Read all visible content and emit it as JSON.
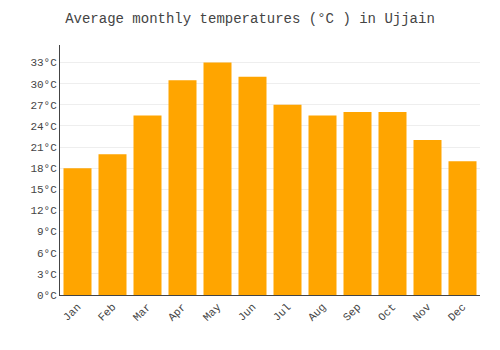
{
  "chart_data": {
    "type": "bar",
    "title": "Average monthly temperatures (°C ) in Ujjain",
    "categories": [
      "Jan",
      "Feb",
      "Mar",
      "Apr",
      "May",
      "Jun",
      "Jul",
      "Aug",
      "Sep",
      "Oct",
      "Nov",
      "Dec"
    ],
    "values": [
      18,
      20,
      25.5,
      30.5,
      33,
      31,
      27,
      25.5,
      26,
      26,
      22,
      19
    ],
    "color": "#FFA500",
    "ylim": [
      0,
      35.5
    ],
    "yticks": [
      {
        "value": 0,
        "label": "0°C"
      },
      {
        "value": 3,
        "label": "3°C"
      },
      {
        "value": 6,
        "label": "6°C"
      },
      {
        "value": 9,
        "label": "9°C"
      },
      {
        "value": 12,
        "label": "12°C"
      },
      {
        "value": 15,
        "label": "15°C"
      },
      {
        "value": 18,
        "label": "18°C"
      },
      {
        "value": 21,
        "label": "21°C"
      },
      {
        "value": 24,
        "label": "24°C"
      },
      {
        "value": 27,
        "label": "27°C"
      },
      {
        "value": 30,
        "label": "30°C"
      },
      {
        "value": 33,
        "label": "33°C"
      }
    ],
    "grid": true
  }
}
